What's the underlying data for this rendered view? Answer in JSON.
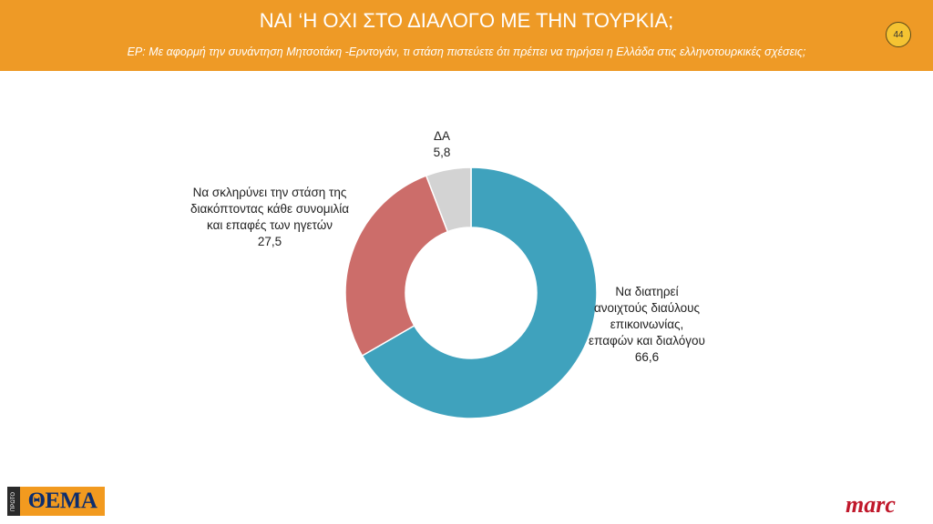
{
  "header": {
    "title": "ΝΑΙ ‘Η ΟΧΙ ΣΤΟ ΔΙΑΛΟΓΟ ΜΕ ΤΗΝ ΤΟΥΡΚΙΑ;",
    "subtitle": "ΕΡ: Με αφορμή την συνάντηση Μητσοτάκη -Ερντογάν, τι στάση πιστεύετε ότι πρέπει να τηρήσει η Ελλάδα στις ελληνοτουρκικές σχέσεις;",
    "page_number": "44"
  },
  "chart_data": {
    "type": "pie",
    "donut": true,
    "slices": [
      {
        "label_lines": [
          "Να διατηρεί",
          "ανοιχτούς διαύλους",
          "επικοινωνίας,",
          "επαφών και διαλόγου"
        ],
        "value": 66.6,
        "value_text": "66,6",
        "color": "#3fa2bd"
      },
      {
        "label_lines": [
          "Να σκληρύνει την στάση της",
          "διακόπτοντας κάθε συνομιλία",
          "και επαφές των ηγετών"
        ],
        "value": 27.5,
        "value_text": "27,5",
        "color": "#cc6d6a"
      },
      {
        "label_lines": [
          "ΔΑ"
        ],
        "value": 5.8,
        "value_text": "5,8",
        "color": "#d3d3d3"
      }
    ]
  },
  "logos": {
    "left": {
      "text": "ΘΕΜΑ",
      "strip_text": "ΠΡΩΤΟ"
    },
    "right": {
      "text": "marc"
    }
  },
  "colors": {
    "header": "#ee9a26"
  }
}
